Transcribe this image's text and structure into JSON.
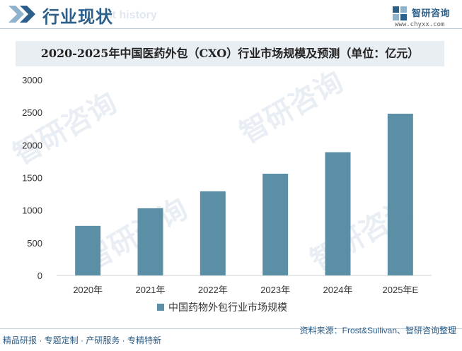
{
  "header": {
    "section_title": "行业现状",
    "section_subtitle": "ent history",
    "brand_name": "智研咨询",
    "brand_url": "www.chyxx.com"
  },
  "watermark_text": "智研咨询",
  "colors": {
    "bar": "#5b8fa6",
    "accent": "#2c5f8a",
    "title_bg": "#e9eef3"
  },
  "chart_data": {
    "type": "bar",
    "title": "2020-2025年中国医药外包（CXO）行业市场规模及预测（单位：亿元）",
    "categories": [
      "2020年",
      "2021年",
      "2022年",
      "2023年",
      "2024年",
      "2025年E"
    ],
    "series": [
      {
        "name": "中国药物外包行业市场规模",
        "values": [
          760,
          1030,
          1290,
          1560,
          1890,
          2480
        ]
      }
    ],
    "ylim": [
      0,
      3000
    ],
    "yticks": [
      0,
      500,
      1000,
      1500,
      2000,
      2500,
      3000
    ],
    "grid": false,
    "legend_position": "bottom"
  },
  "footer": {
    "tagline": "精品研报 · 专题定制 · 产研服务 · 专精特新",
    "source": "资料来源：Frost&Sullivan、智研咨询整理"
  }
}
